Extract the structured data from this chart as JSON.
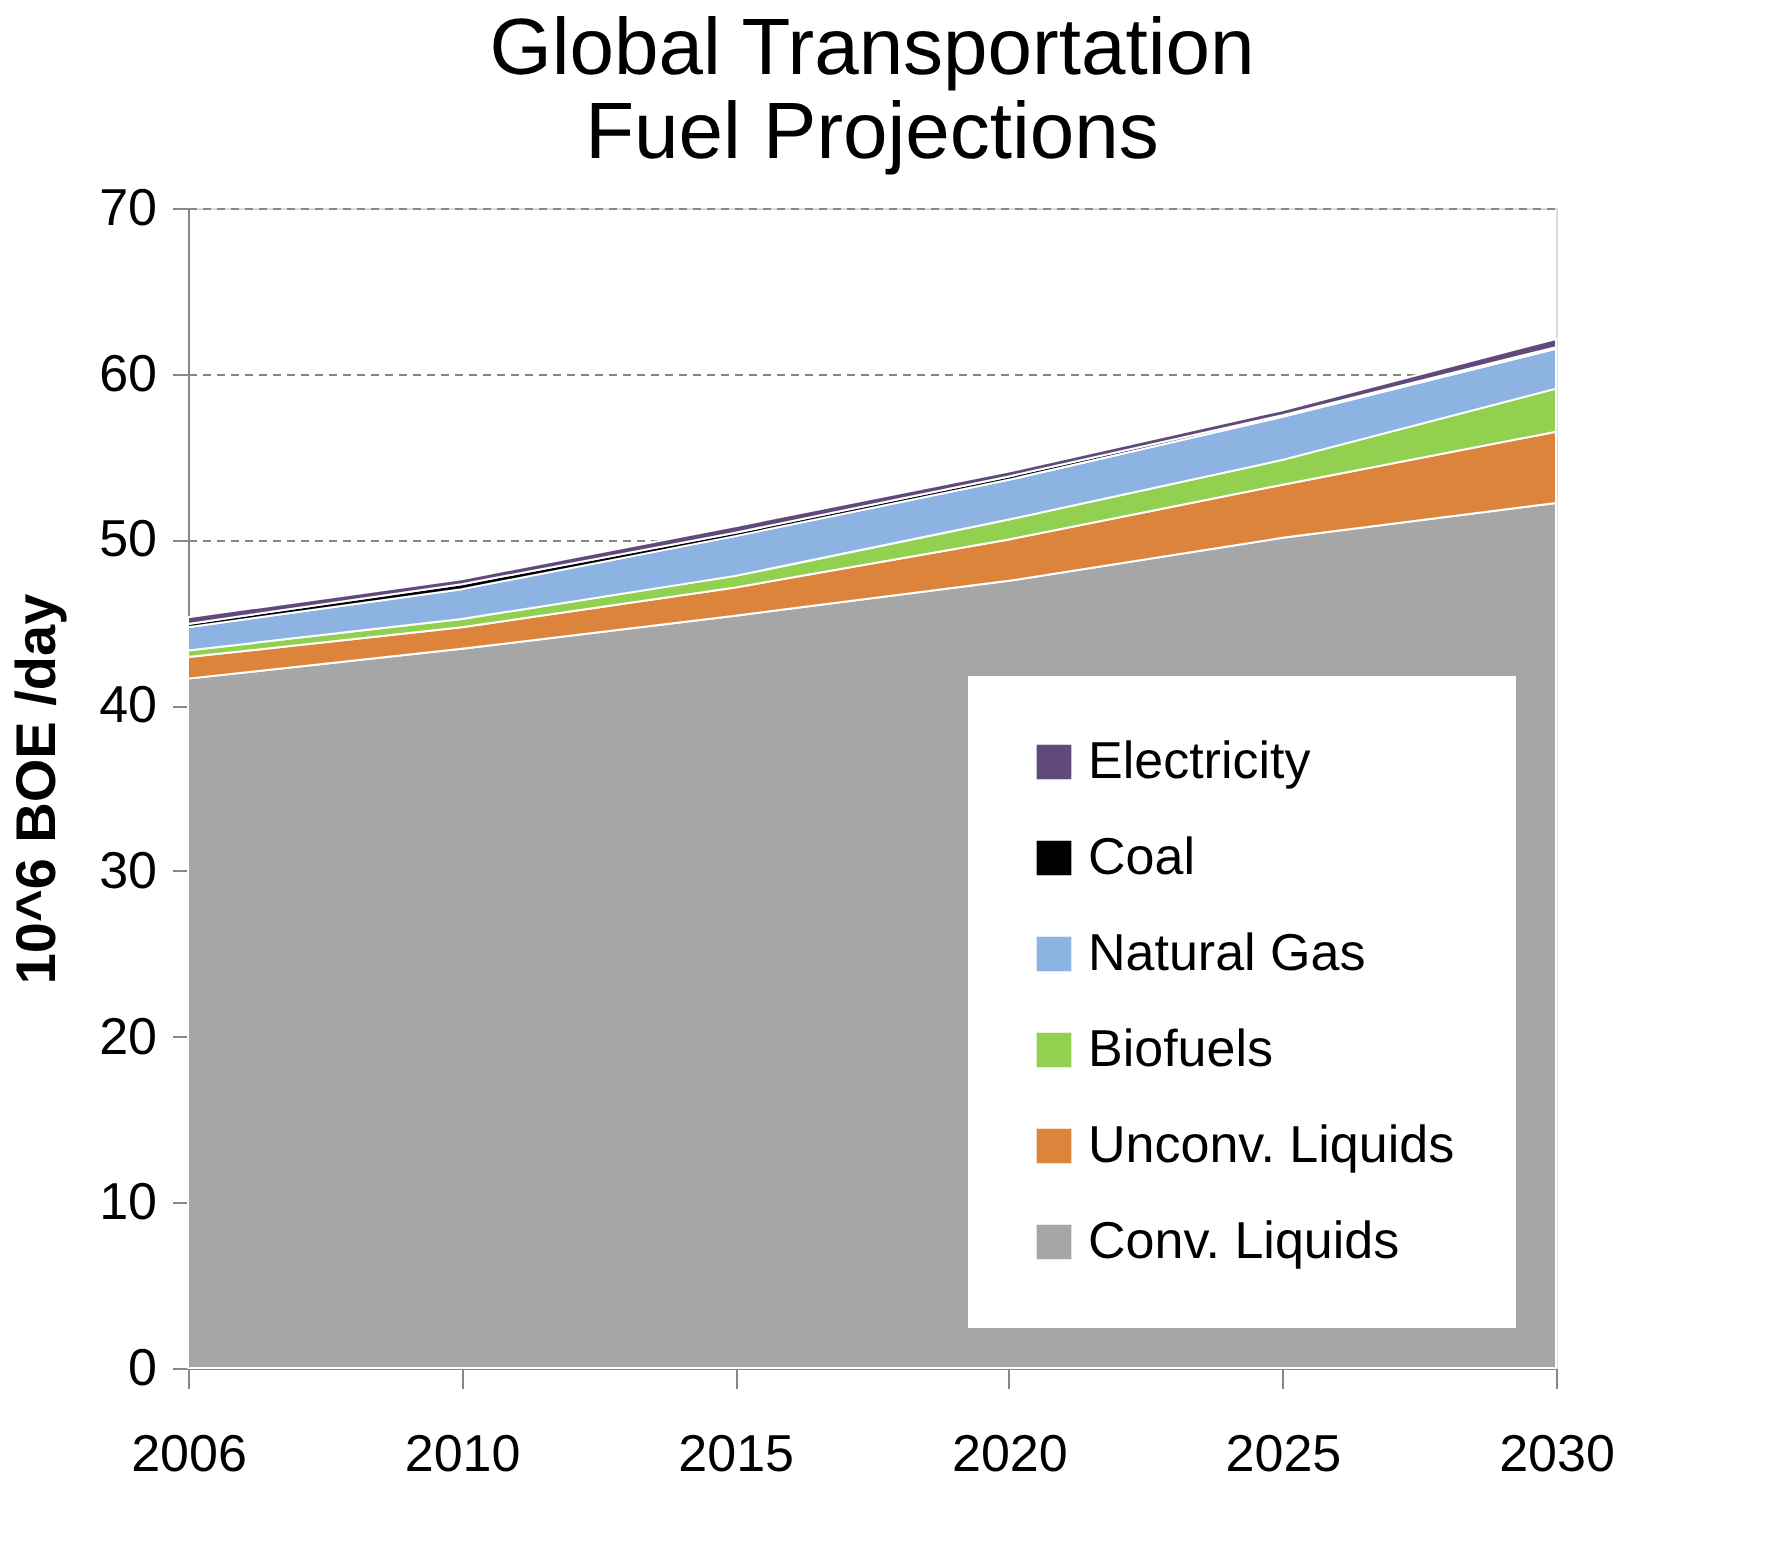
{
  "chart_data": {
    "type": "area",
    "stacked": true,
    "title": "Global Transportation\nFuel Projections",
    "ylabel": "10^6 BOE /day",
    "categories": [
      "2006",
      "2010",
      "2015",
      "2020",
      "2025",
      "2030"
    ],
    "series": [
      {
        "name": "Conv. Liquids",
        "color": "#a6a6a6",
        "values": [
          41.6,
          43.4,
          45.4,
          47.5,
          50.1,
          52.2
        ]
      },
      {
        "name": "Unconv. Liquids",
        "color": "#dd843c",
        "values": [
          1.3,
          1.3,
          1.7,
          2.5,
          3.2,
          4.3
        ]
      },
      {
        "name": "Biofuels",
        "color": "#92d050",
        "values": [
          0.4,
          0.5,
          0.7,
          1.2,
          1.5,
          2.6
        ]
      },
      {
        "name": "Natural Gas",
        "color": "#8db3e2",
        "values": [
          1.4,
          1.8,
          2.4,
          2.4,
          2.6,
          2.4
        ]
      },
      {
        "name": "Coal",
        "color": "#000000",
        "values": [
          0.2,
          0.3,
          0.2,
          0.2,
          0.1,
          0.1
        ]
      },
      {
        "name": "Electricity",
        "color": "#604a7b",
        "values": [
          0.4,
          0.3,
          0.4,
          0.3,
          0.3,
          0.5
        ]
      }
    ],
    "ylim": [
      0,
      70
    ],
    "yticks": [
      0,
      10,
      20,
      30,
      40,
      50,
      60,
      70
    ],
    "grid": "y",
    "legend": "bottom right"
  }
}
